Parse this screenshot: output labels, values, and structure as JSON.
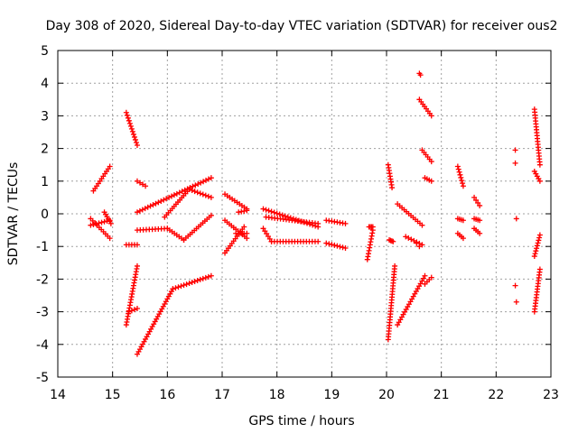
{
  "chart_data": {
    "type": "scatter",
    "title": "Day 308 of 2020, Sidereal Day-to-day VTEC variation (SDTVAR) for receiver ous2",
    "xlabel": "GPS time / hours",
    "ylabel": "SDTVAR / TECUs",
    "xlim": [
      14,
      23
    ],
    "ylim": [
      -5,
      5
    ],
    "x_ticks": [
      "14",
      "15",
      "16",
      "17",
      "18",
      "19",
      "20",
      "21",
      "22",
      "23"
    ],
    "y_ticks": [
      "-5",
      "-4",
      "-3",
      "-2",
      "-1",
      "0",
      "1",
      "2",
      "3",
      "4",
      "5"
    ],
    "grid": true,
    "marker": "plus",
    "color": "#ff0000",
    "segments": [
      {
        "x": [
          14.65,
          14.95
        ],
        "y": [
          0.7,
          1.45
        ]
      },
      {
        "x": [
          14.6,
          14.95
        ],
        "y": [
          -0.15,
          -0.75
        ]
      },
      {
        "x": [
          14.6,
          14.95
        ],
        "y": [
          -0.35,
          -0.2
        ]
      },
      {
        "x": [
          14.85,
          14.97
        ],
        "y": [
          0.05,
          -0.3
        ]
      },
      {
        "x": [
          15.25,
          15.45
        ],
        "y": [
          3.1,
          2.1
        ]
      },
      {
        "x": [
          15.25,
          15.45
        ],
        "y": [
          -0.95,
          -0.95
        ]
      },
      {
        "x": [
          15.25,
          15.45
        ],
        "y": [
          -3.4,
          -1.6
        ]
      },
      {
        "x": [
          15.3,
          15.45
        ],
        "y": [
          -3.0,
          -2.9
        ]
      },
      {
        "x": [
          15.45,
          15.6
        ],
        "y": [
          1.0,
          0.85
        ]
      },
      {
        "x": [
          15.45,
          16.8
        ],
        "y": [
          0.05,
          1.1
        ]
      },
      {
        "x": [
          15.45,
          16.1
        ],
        "y": [
          -4.3,
          -2.3
        ]
      },
      {
        "x": [
          16.1,
          16.8
        ],
        "y": [
          -2.3,
          -1.9
        ]
      },
      {
        "x": [
          15.45,
          16.0
        ],
        "y": [
          -0.5,
          -0.45
        ]
      },
      {
        "x": [
          16.0,
          16.3
        ],
        "y": [
          -0.45,
          -0.8
        ]
      },
      {
        "x": [
          16.3,
          16.8
        ],
        "y": [
          -0.8,
          -0.05
        ]
      },
      {
        "x": [
          15.95,
          16.4
        ],
        "y": [
          -0.1,
          0.75
        ]
      },
      {
        "x": [
          16.4,
          16.8
        ],
        "y": [
          0.75,
          0.5
        ]
      },
      {
        "x": [
          17.05,
          17.45
        ],
        "y": [
          0.6,
          0.15
        ]
      },
      {
        "x": [
          17.05,
          17.4
        ],
        "y": [
          -1.2,
          -0.4
        ]
      },
      {
        "x": [
          17.05,
          17.45
        ],
        "y": [
          -0.2,
          -0.75
        ]
      },
      {
        "x": [
          17.25,
          17.45
        ],
        "y": [
          -0.6,
          -0.6
        ]
      },
      {
        "x": [
          17.3,
          17.45
        ],
        "y": [
          0.05,
          0.1
        ]
      },
      {
        "x": [
          17.75,
          18.75
        ],
        "y": [
          0.15,
          -0.4
        ]
      },
      {
        "x": [
          17.8,
          18.75
        ],
        "y": [
          -0.1,
          -0.3
        ]
      },
      {
        "x": [
          17.75,
          17.9
        ],
        "y": [
          -0.45,
          -0.85
        ]
      },
      {
        "x": [
          17.9,
          18.75
        ],
        "y": [
          -0.85,
          -0.85
        ]
      },
      {
        "x": [
          18.9,
          19.25
        ],
        "y": [
          -0.2,
          -0.3
        ]
      },
      {
        "x": [
          18.9,
          19.25
        ],
        "y": [
          -0.9,
          -1.05
        ]
      },
      {
        "x": [
          19.65,
          19.75
        ],
        "y": [
          -1.4,
          -0.5
        ]
      },
      {
        "x": [
          19.68,
          19.75
        ],
        "y": [
          -0.4,
          -0.4
        ]
      },
      {
        "x": [
          20.03,
          20.15
        ],
        "y": [
          -3.85,
          -1.6
        ]
      },
      {
        "x": [
          20.03,
          20.1
        ],
        "y": [
          1.5,
          0.8
        ]
      },
      {
        "x": [
          20.05,
          20.12
        ],
        "y": [
          -0.8,
          -0.85
        ]
      },
      {
        "x": [
          20.2,
          20.65
        ],
        "y": [
          0.3,
          -0.35
        ]
      },
      {
        "x": [
          20.2,
          20.7
        ],
        "y": [
          -3.4,
          -1.9
        ]
      },
      {
        "x": [
          20.35,
          20.65
        ],
        "y": [
          -0.7,
          -0.95
        ]
      },
      {
        "x": [
          20.6,
          20.82
        ],
        "y": [
          3.5,
          3.0
        ]
      },
      {
        "x": [
          20.65,
          20.82
        ],
        "y": [
          1.95,
          1.6
        ]
      },
      {
        "x": [
          20.7,
          20.82
        ],
        "y": [
          1.1,
          1.0
        ]
      },
      {
        "x": [
          20.7,
          20.82
        ],
        "y": [
          -2.15,
          -1.95
        ]
      },
      {
        "x": [
          21.3,
          21.4
        ],
        "y": [
          1.45,
          0.85
        ]
      },
      {
        "x": [
          21.3,
          21.4
        ],
        "y": [
          -0.15,
          -0.2
        ]
      },
      {
        "x": [
          21.3,
          21.4
        ],
        "y": [
          -0.6,
          -0.75
        ]
      },
      {
        "x": [
          21.6,
          21.7
        ],
        "y": [
          0.5,
          0.25
        ]
      },
      {
        "x": [
          21.6,
          21.7
        ],
        "y": [
          -0.45,
          -0.6
        ]
      },
      {
        "x": [
          21.6,
          21.7
        ],
        "y": [
          -0.15,
          -0.2
        ]
      },
      {
        "x": [
          22.7,
          22.8
        ],
        "y": [
          3.2,
          1.5
        ]
      },
      {
        "x": [
          22.7,
          22.8
        ],
        "y": [
          1.3,
          1.0
        ]
      },
      {
        "x": [
          22.7,
          22.8
        ],
        "y": [
          -3.0,
          -1.7
        ]
      },
      {
        "x": [
          22.7,
          22.8
        ],
        "y": [
          -1.3,
          -0.65
        ]
      }
    ],
    "points": [
      {
        "x": 20.6,
        "y": 4.3
      },
      {
        "x": 20.62,
        "y": 4.25
      },
      {
        "x": 22.35,
        "y": 1.95
      },
      {
        "x": 22.35,
        "y": 1.55
      },
      {
        "x": 22.37,
        "y": -0.15
      },
      {
        "x": 22.35,
        "y": -2.2
      },
      {
        "x": 22.37,
        "y": -2.7
      },
      {
        "x": 20.55,
        "y": -0.9
      },
      {
        "x": 20.6,
        "y": -1.0
      }
    ]
  }
}
